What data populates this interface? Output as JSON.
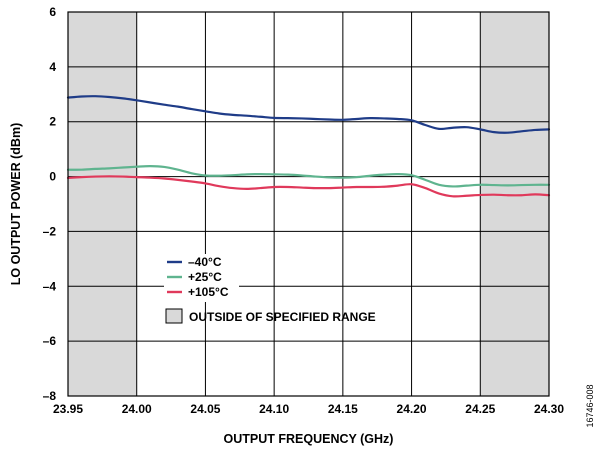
{
  "chart_data": {
    "type": "line",
    "title": "",
    "xlabel": "OUTPUT FREQUENCY (GHz)",
    "ylabel": "LO OUTPUT POWER (dBm)",
    "xlim": [
      23.95,
      24.3
    ],
    "ylim": [
      -8,
      6
    ],
    "x_ticks": [
      23.95,
      24.0,
      24.05,
      24.1,
      24.15,
      24.2,
      24.25,
      24.3
    ],
    "x_tick_labels": [
      "23.95",
      "24.00",
      "24.05",
      "24.10",
      "24.15",
      "24.20",
      "24.25",
      "24.30"
    ],
    "y_ticks": [
      -8,
      -6,
      -4,
      -2,
      0,
      2,
      4,
      6
    ],
    "y_tick_labels": [
      "–8",
      "–6",
      "–4",
      "–2",
      "0",
      "2",
      "4",
      "6"
    ],
    "grid": true,
    "legend_position": "lower-left",
    "shaded_regions": [
      {
        "x": [
          23.95,
          24.0
        ],
        "label": "OUTSIDE OF SPECIFIED RANGE"
      },
      {
        "x": [
          24.25,
          24.3
        ],
        "label": "OUTSIDE OF SPECIFIED RANGE"
      }
    ],
    "shaded_legend_label": "OUTSIDE OF SPECIFIED RANGE",
    "shade_color": "#d9d9d9",
    "series": [
      {
        "name": "–40°C",
        "color": "#1f3c88",
        "points": [
          [
            23.95,
            2.88
          ],
          [
            23.96,
            2.92
          ],
          [
            23.97,
            2.93
          ],
          [
            23.98,
            2.9
          ],
          [
            23.99,
            2.85
          ],
          [
            24.0,
            2.78
          ],
          [
            24.01,
            2.7
          ],
          [
            24.02,
            2.62
          ],
          [
            24.03,
            2.55
          ],
          [
            24.04,
            2.46
          ],
          [
            24.05,
            2.38
          ],
          [
            24.06,
            2.3
          ],
          [
            24.07,
            2.25
          ],
          [
            24.08,
            2.22
          ],
          [
            24.09,
            2.18
          ],
          [
            24.1,
            2.14
          ],
          [
            24.11,
            2.13
          ],
          [
            24.12,
            2.12
          ],
          [
            24.13,
            2.1
          ],
          [
            24.14,
            2.08
          ],
          [
            24.15,
            2.07
          ],
          [
            24.16,
            2.1
          ],
          [
            24.17,
            2.13
          ],
          [
            24.18,
            2.12
          ],
          [
            24.19,
            2.1
          ],
          [
            24.2,
            2.05
          ],
          [
            24.21,
            1.88
          ],
          [
            24.22,
            1.74
          ],
          [
            24.23,
            1.78
          ],
          [
            24.24,
            1.8
          ],
          [
            24.25,
            1.72
          ],
          [
            24.26,
            1.62
          ],
          [
            24.27,
            1.6
          ],
          [
            24.28,
            1.65
          ],
          [
            24.29,
            1.7
          ],
          [
            24.3,
            1.72
          ]
        ]
      },
      {
        "name": "+25°C",
        "color": "#5fb48f",
        "points": [
          [
            23.95,
            0.25
          ],
          [
            23.96,
            0.25
          ],
          [
            23.97,
            0.28
          ],
          [
            23.98,
            0.3
          ],
          [
            23.99,
            0.33
          ],
          [
            24.0,
            0.36
          ],
          [
            24.01,
            0.38
          ],
          [
            24.02,
            0.35
          ],
          [
            24.03,
            0.25
          ],
          [
            24.04,
            0.12
          ],
          [
            24.05,
            0.04
          ],
          [
            24.06,
            0.03
          ],
          [
            24.07,
            0.05
          ],
          [
            24.08,
            0.08
          ],
          [
            24.09,
            0.09
          ],
          [
            24.1,
            0.08
          ],
          [
            24.11,
            0.07
          ],
          [
            24.12,
            0.04
          ],
          [
            24.13,
            0.0
          ],
          [
            24.14,
            -0.03
          ],
          [
            24.15,
            -0.04
          ],
          [
            24.16,
            -0.02
          ],
          [
            24.17,
            0.03
          ],
          [
            24.18,
            0.07
          ],
          [
            24.19,
            0.09
          ],
          [
            24.2,
            0.05
          ],
          [
            24.21,
            -0.12
          ],
          [
            24.22,
            -0.3
          ],
          [
            24.23,
            -0.36
          ],
          [
            24.24,
            -0.33
          ],
          [
            24.25,
            -0.3
          ],
          [
            24.26,
            -0.31
          ],
          [
            24.27,
            -0.32
          ],
          [
            24.28,
            -0.31
          ],
          [
            24.29,
            -0.3
          ],
          [
            24.3,
            -0.3
          ]
        ]
      },
      {
        "name": "+105°C",
        "color": "#e0395b",
        "points": [
          [
            23.95,
            -0.05
          ],
          [
            23.96,
            -0.02
          ],
          [
            23.97,
            0.0
          ],
          [
            23.98,
            0.01
          ],
          [
            23.99,
            0.0
          ],
          [
            24.0,
            -0.02
          ],
          [
            24.01,
            -0.04
          ],
          [
            24.02,
            -0.07
          ],
          [
            24.03,
            -0.12
          ],
          [
            24.04,
            -0.18
          ],
          [
            24.05,
            -0.25
          ],
          [
            24.06,
            -0.35
          ],
          [
            24.07,
            -0.42
          ],
          [
            24.08,
            -0.45
          ],
          [
            24.09,
            -0.42
          ],
          [
            24.1,
            -0.38
          ],
          [
            24.11,
            -0.38
          ],
          [
            24.12,
            -0.4
          ],
          [
            24.13,
            -0.42
          ],
          [
            24.14,
            -0.42
          ],
          [
            24.15,
            -0.4
          ],
          [
            24.16,
            -0.38
          ],
          [
            24.17,
            -0.38
          ],
          [
            24.18,
            -0.37
          ],
          [
            24.19,
            -0.33
          ],
          [
            24.2,
            -0.28
          ],
          [
            24.21,
            -0.42
          ],
          [
            24.22,
            -0.62
          ],
          [
            24.23,
            -0.72
          ],
          [
            24.24,
            -0.7
          ],
          [
            24.25,
            -0.67
          ],
          [
            24.26,
            -0.66
          ],
          [
            24.27,
            -0.68
          ],
          [
            24.28,
            -0.68
          ],
          [
            24.29,
            -0.65
          ],
          [
            24.3,
            -0.68
          ]
        ]
      }
    ]
  },
  "figure_id": "16746-008"
}
